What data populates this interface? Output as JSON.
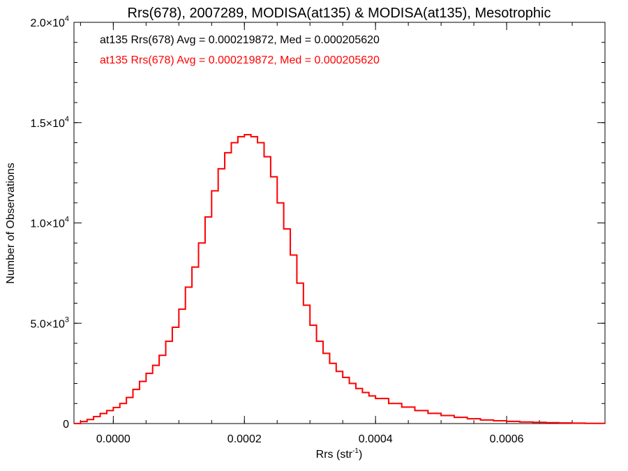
{
  "chart_data": {
    "type": "line",
    "title": "Rrs(678), 2007289, MODISA(at135) & MODISA(at135), Mesotrophic",
    "xlabel_main": "Rrs (str",
    "xlabel_sup": "-1",
    "xlabel_end": ")",
    "ylabel": "Number of Observations",
    "xlim": [
      -6e-05,
      0.00075
    ],
    "ylim": [
      0,
      20000
    ],
    "grid": false,
    "legend_position": "top-left",
    "x_ticks": [
      {
        "value": 0.0,
        "label": "0.0000"
      },
      {
        "value": 0.0002,
        "label": "0.0002"
      },
      {
        "value": 0.0004,
        "label": "0.0004"
      },
      {
        "value": 0.0006,
        "label": "0.0006"
      }
    ],
    "x_minor_step": 5e-05,
    "y_ticks": [
      {
        "value": 0,
        "mant": "0",
        "exp": ""
      },
      {
        "value": 5000,
        "mant": "5.0×10",
        "exp": "3"
      },
      {
        "value": 10000,
        "mant": "1.0×10",
        "exp": "4"
      },
      {
        "value": 15000,
        "mant": "1.5×10",
        "exp": "4"
      },
      {
        "value": 20000,
        "mant": "2.0×10",
        "exp": "4"
      }
    ],
    "y_minor_step": 1000,
    "series": [
      {
        "name": "at135 Rrs(678) Avg = 0.000219872, Med = 0.000205620",
        "color": "#000000",
        "x": [
          -6e-05,
          -5e-05,
          -4e-05,
          -3e-05,
          -2e-05,
          -1e-05,
          0.0,
          1e-05,
          2e-05,
          3e-05,
          4e-05,
          5e-05,
          6e-05,
          7e-05,
          8e-05,
          9e-05,
          0.0001,
          0.00011,
          0.00012,
          0.00013,
          0.00014,
          0.00015,
          0.00016,
          0.00017,
          0.00018,
          0.00019,
          0.0002,
          0.00021,
          0.00022,
          0.00023,
          0.00024,
          0.00025,
          0.00026,
          0.00027,
          0.00028,
          0.00029,
          0.0003,
          0.00031,
          0.00032,
          0.00033,
          0.00034,
          0.00035,
          0.00036,
          0.00037,
          0.00038,
          0.00039,
          0.0004,
          0.00042,
          0.00044,
          0.00046,
          0.00048,
          0.0005,
          0.00052,
          0.00054,
          0.00056,
          0.00058,
          0.0006,
          0.00062,
          0.00064,
          0.00066,
          0.00068,
          0.0007,
          0.00072,
          0.00075
        ],
        "y": [
          0,
          100,
          200,
          350,
          500,
          650,
          800,
          1000,
          1300,
          1700,
          2100,
          2500,
          2900,
          3400,
          4100,
          4800,
          5700,
          6800,
          7800,
          9000,
          10300,
          11600,
          12700,
          13500,
          14000,
          14300,
          14400,
          14300,
          14000,
          13300,
          12300,
          11000,
          9700,
          8400,
          7000,
          5900,
          4900,
          4100,
          3500,
          3000,
          2600,
          2300,
          2000,
          1750,
          1550,
          1380,
          1250,
          1000,
          820,
          650,
          510,
          400,
          310,
          240,
          180,
          140,
          110,
          80,
          60,
          45,
          30,
          20,
          10,
          5
        ]
      },
      {
        "name": "at135 Rrs(678) Avg = 0.000219872, Med = 0.000205620",
        "color": "#ff0000",
        "x": [
          -6e-05,
          -5e-05,
          -4e-05,
          -3e-05,
          -2e-05,
          -1e-05,
          0.0,
          1e-05,
          2e-05,
          3e-05,
          4e-05,
          5e-05,
          6e-05,
          7e-05,
          8e-05,
          9e-05,
          0.0001,
          0.00011,
          0.00012,
          0.00013,
          0.00014,
          0.00015,
          0.00016,
          0.00017,
          0.00018,
          0.00019,
          0.0002,
          0.00021,
          0.00022,
          0.00023,
          0.00024,
          0.00025,
          0.00026,
          0.00027,
          0.00028,
          0.00029,
          0.0003,
          0.00031,
          0.00032,
          0.00033,
          0.00034,
          0.00035,
          0.00036,
          0.00037,
          0.00038,
          0.00039,
          0.0004,
          0.00042,
          0.00044,
          0.00046,
          0.00048,
          0.0005,
          0.00052,
          0.00054,
          0.00056,
          0.00058,
          0.0006,
          0.00062,
          0.00064,
          0.00066,
          0.00068,
          0.0007,
          0.00072,
          0.00075
        ],
        "y": [
          0,
          100,
          200,
          350,
          500,
          650,
          800,
          1000,
          1300,
          1700,
          2100,
          2500,
          2900,
          3400,
          4100,
          4800,
          5700,
          6800,
          7800,
          9000,
          10300,
          11600,
          12700,
          13500,
          14000,
          14300,
          14400,
          14300,
          14000,
          13300,
          12300,
          11000,
          9700,
          8400,
          7000,
          5900,
          4900,
          4100,
          3500,
          3000,
          2600,
          2300,
          2000,
          1750,
          1550,
          1380,
          1250,
          1000,
          820,
          650,
          510,
          400,
          310,
          240,
          180,
          140,
          110,
          80,
          60,
          45,
          30,
          20,
          10,
          5
        ]
      }
    ]
  }
}
